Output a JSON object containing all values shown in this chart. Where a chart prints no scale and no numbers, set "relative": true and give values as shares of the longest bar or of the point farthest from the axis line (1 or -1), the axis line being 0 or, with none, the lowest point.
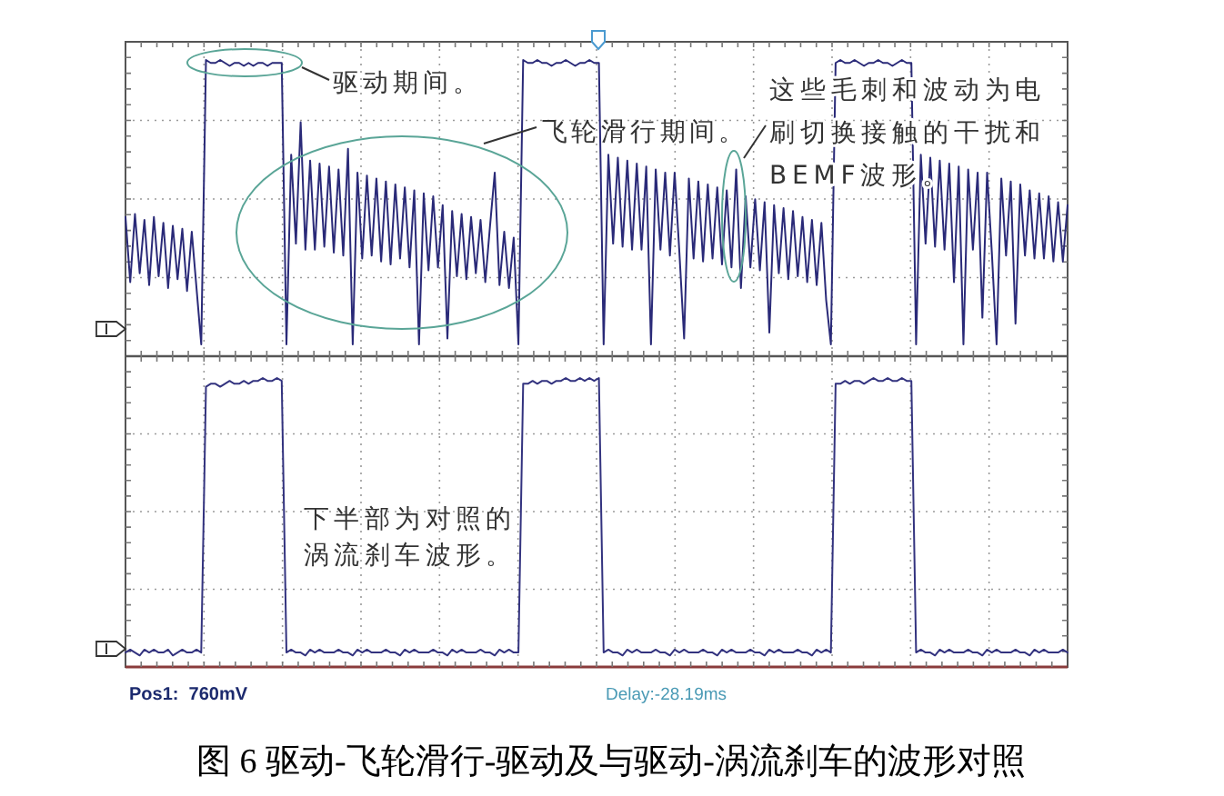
{
  "chart_data": [
    {
      "type": "line",
      "relative": true,
      "grid": true,
      "color": "#2a2a78",
      "categories": [
        null,
        null,
        null,
        null,
        null,
        null,
        null,
        null,
        null,
        null,
        null,
        null,
        null,
        null,
        null,
        null,
        null,
        null,
        null,
        null,
        null,
        null,
        null,
        null,
        null,
        null,
        null,
        null,
        null,
        null,
        null,
        null,
        null,
        null,
        null,
        null,
        null,
        null,
        null,
        null,
        null,
        null,
        null,
        null,
        null,
        null,
        null,
        null,
        null,
        null,
        null,
        null,
        null,
        null,
        null,
        null,
        null,
        null,
        null,
        null,
        null,
        null,
        null,
        null,
        null,
        null,
        null,
        null,
        null,
        null,
        null,
        null,
        null,
        null,
        null,
        null,
        null,
        null,
        null,
        null,
        null,
        null,
        null,
        null,
        null,
        null,
        null,
        null,
        null,
        null,
        null,
        null,
        null,
        null,
        null,
        null,
        null,
        null,
        null,
        null,
        null,
        null,
        null,
        null,
        null,
        null,
        null,
        null,
        null,
        null,
        null,
        null,
        null,
        null,
        null,
        null,
        null,
        null,
        null,
        null,
        null,
        null,
        null,
        null,
        null,
        null,
        null,
        null,
        null,
        null,
        null,
        null,
        null,
        null,
        null,
        null,
        null,
        null,
        null,
        null,
        null,
        null,
        null,
        null,
        null,
        null,
        null,
        null,
        null,
        null,
        null,
        null,
        null,
        null,
        null,
        null,
        null,
        null,
        null,
        null,
        null,
        null,
        null,
        null,
        null,
        null,
        null,
        null,
        null,
        null,
        null,
        null,
        null,
        null,
        null,
        null,
        null,
        null,
        null,
        null,
        null,
        null,
        null,
        null,
        null,
        null,
        null,
        null,
        null,
        null,
        null,
        null,
        null,
        null,
        null,
        null,
        null,
        null,
        null,
        null
      ],
      "values": [
        0.47,
        0.25,
        0.48,
        0.28,
        0.46,
        0.24,
        0.47,
        0.27,
        0.45,
        0.23,
        0.44,
        0.26,
        0.43,
        0.22,
        0.42,
        0.23,
        0.04,
        1,
        0.99,
        0.99,
        1,
        0.99,
        0.98,
        0.99,
        0.99,
        0.98,
        0.99,
        0.98,
        0.99,
        0.99,
        0.98,
        0.99,
        0.99,
        0.99,
        0.04,
        0.68,
        0.38,
        0.79,
        0.36,
        0.66,
        0.36,
        0.65,
        0.37,
        0.64,
        0.35,
        0.63,
        0.34,
        0.7,
        0.04,
        0.62,
        0.33,
        0.61,
        0.34,
        0.6,
        0.32,
        0.59,
        0.31,
        0.58,
        0.33,
        0.57,
        0.3,
        0.56,
        0.04,
        0.55,
        0.29,
        0.54,
        0.3,
        0.51,
        0.06,
        0.49,
        0.27,
        0.48,
        0.26,
        0.47,
        0.28,
        0.46,
        0.25,
        0.44,
        0.62,
        0.24,
        0.42,
        0.23,
        0.4,
        0.04,
        1,
        0.99,
        0.99,
        1,
        0.99,
        0.99,
        0.98,
        0.99,
        0.99,
        1,
        0.99,
        0.98,
        0.99,
        0.99,
        1,
        0.99,
        0.99,
        0.04,
        0.68,
        0.38,
        0.67,
        0.37,
        0.66,
        0.36,
        0.65,
        0.36,
        0.64,
        0.04,
        0.63,
        0.36,
        0.62,
        0.34,
        0.62,
        0.35,
        0.06,
        0.6,
        0.33,
        0.59,
        0.32,
        0.58,
        0.33,
        0.57,
        0.31,
        0.56,
        0.3,
        0.63,
        0.23,
        0.54,
        0.3,
        0.53,
        0.29,
        0.52,
        0.08,
        0.51,
        0.28,
        0.5,
        0.26,
        0.49,
        0.27,
        0.47,
        0.25,
        0.46,
        0.24,
        0.45,
        0.19,
        0.04,
        0.99,
        1,
        0.99,
        0.99,
        1,
        0.99,
        0.98,
        0.99,
        0.99,
        1,
        0.99,
        0.99,
        0.98,
        0.99,
        1,
        0.99,
        0.99,
        0.04,
        0.68,
        0.38,
        0.67,
        0.37,
        0.66,
        0.36,
        0.65,
        0.25,
        0.64,
        0.04,
        0.63,
        0.36,
        0.62,
        0.13,
        0.62,
        0.35,
        0.04,
        0.6,
        0.34,
        0.59,
        0.11,
        0.58,
        0.34,
        0.56,
        0.33,
        0.55,
        0.33,
        0.54,
        0.32,
        0.52,
        0.32,
        0.51
      ],
      "annotations": [
        "驱动期间。",
        "飞轮滑行期间。",
        "这些毛刺和波动为电刷切换接触的干扰和BEMF波形。"
      ]
    },
    {
      "type": "line",
      "relative": true,
      "grid": true,
      "color": "#33337f",
      "categories": [
        null,
        null,
        null,
        null,
        null,
        null,
        null,
        null,
        null,
        null,
        null,
        null,
        null,
        null,
        null,
        null,
        null,
        null,
        null,
        null,
        null,
        null,
        null,
        null,
        null,
        null,
        null,
        null,
        null,
        null,
        null,
        null,
        null,
        null,
        null,
        null,
        null,
        null,
        null,
        null,
        null,
        null,
        null,
        null,
        null,
        null,
        null,
        null,
        null,
        null,
        null,
        null,
        null,
        null,
        null,
        null,
        null,
        null,
        null,
        null,
        null,
        null,
        null,
        null,
        null,
        null,
        null,
        null,
        null,
        null,
        null,
        null,
        null,
        null,
        null,
        null,
        null,
        null,
        null,
        null,
        null,
        null,
        null,
        null,
        null,
        null,
        null,
        null,
        null,
        null,
        null,
        null,
        null,
        null,
        null,
        null,
        null,
        null,
        null,
        null,
        null,
        null,
        null,
        null,
        null,
        null,
        null,
        null,
        null,
        null,
        null,
        null,
        null,
        null,
        null,
        null,
        null,
        null,
        null,
        null,
        null,
        null,
        null,
        null,
        null,
        null,
        null,
        null,
        null,
        null,
        null,
        null,
        null,
        null,
        null,
        null,
        null,
        null,
        null,
        null,
        null,
        null,
        null,
        null,
        null,
        null,
        null,
        null,
        null,
        null,
        null,
        null,
        null,
        null,
        null,
        null,
        null,
        null,
        null,
        null,
        null,
        null,
        null,
        null,
        null,
        null,
        null,
        null,
        null,
        null,
        null,
        null,
        null,
        null,
        null,
        null,
        null,
        null,
        null,
        null,
        null,
        null,
        null,
        null,
        null,
        null,
        null,
        null,
        null,
        null,
        null,
        null,
        null,
        null,
        null,
        null,
        null,
        null,
        null,
        null
      ],
      "values": [
        0.05,
        0.06,
        0.05,
        0.04,
        0.06,
        0.05,
        0.06,
        0.05,
        0.05,
        0.06,
        0.04,
        0.05,
        0.06,
        0.05,
        0.05,
        0.06,
        0.05,
        0.97,
        0.98,
        0.98,
        0.97,
        0.98,
        0.99,
        0.98,
        0.98,
        0.99,
        0.98,
        0.99,
        0.99,
        1,
        0.99,
        0.99,
        1,
        0.99,
        0.05,
        0.06,
        0.05,
        0.05,
        0.04,
        0.06,
        0.05,
        0.06,
        0.05,
        0.05,
        0.05,
        0.06,
        0.05,
        0.05,
        0.04,
        0.06,
        0.05,
        0.06,
        0.05,
        0.05,
        0.05,
        0.06,
        0.05,
        0.05,
        0.04,
        0.06,
        0.05,
        0.06,
        0.05,
        0.05,
        0.05,
        0.06,
        0.05,
        0.05,
        0.04,
        0.06,
        0.05,
        0.06,
        0.05,
        0.05,
        0.05,
        0.06,
        0.05,
        0.05,
        0.04,
        0.06,
        0.05,
        0.06,
        0.05,
        0.05,
        0.98,
        0.98,
        0.99,
        0.98,
        0.99,
        0.99,
        0.98,
        0.99,
        0.99,
        1,
        0.99,
        0.99,
        1,
        0.99,
        1,
        0.99,
        1,
        0.05,
        0.06,
        0.05,
        0.05,
        0.04,
        0.06,
        0.05,
        0.06,
        0.05,
        0.05,
        0.05,
        0.06,
        0.05,
        0.05,
        0.04,
        0.06,
        0.05,
        0.06,
        0.05,
        0.05,
        0.05,
        0.06,
        0.05,
        0.05,
        0.04,
        0.06,
        0.05,
        0.06,
        0.05,
        0.05,
        0.05,
        0.06,
        0.05,
        0.05,
        0.04,
        0.06,
        0.05,
        0.06,
        0.05,
        0.05,
        0.05,
        0.06,
        0.05,
        0.05,
        0.04,
        0.06,
        0.05,
        0.06,
        0.05,
        0.98,
        0.98,
        0.99,
        0.98,
        0.99,
        0.99,
        0.98,
        0.99,
        1,
        0.99,
        0.99,
        1,
        0.99,
        0.99,
        1,
        0.99,
        0.99,
        0.05,
        0.06,
        0.05,
        0.05,
        0.04,
        0.06,
        0.05,
        0.06,
        0.05,
        0.05,
        0.05,
        0.06,
        0.05,
        0.05,
        0.04,
        0.06,
        0.05,
        0.06,
        0.05,
        0.05,
        0.05,
        0.06,
        0.05,
        0.05,
        0.04,
        0.06,
        0.05,
        0.06,
        0.05,
        0.05,
        0.05,
        0.06,
        0.05
      ],
      "annotations": [
        "下半部为对照的涡流刹车波形。",
        "Pos1:  760mV",
        "Delay:-28.19ms",
        "图 6 驱动-飞轮滑行-驱动及与驱动-涡流刹车的波形对照"
      ]
    }
  ]
}
